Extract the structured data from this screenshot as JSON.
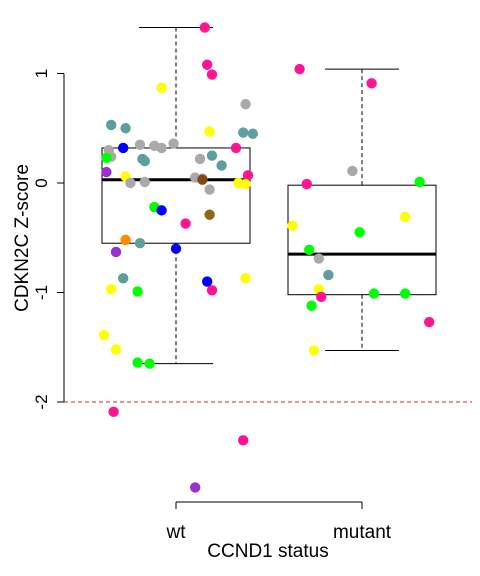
{
  "chart_data": {
    "type": "boxplot",
    "ylabel": "CDKN2C Z-score",
    "xlabel": "CCND1 status",
    "categories": [
      "wt",
      "mutant"
    ],
    "ylim": [
      -2.9,
      1.45
    ],
    "yticks": [
      1,
      0,
      -1,
      -2
    ],
    "yticklabels": [
      "1",
      "0",
      "-1",
      "-2"
    ],
    "reference_line": {
      "y": -2,
      "color": "#d62728",
      "style": "dashed"
    },
    "boxes": [
      {
        "category": "wt",
        "whisker_low": -1.65,
        "q1": -0.55,
        "median": 0.03,
        "q3": 0.32,
        "whisker_high": 1.42
      },
      {
        "category": "mutant",
        "whisker_low": -1.53,
        "q1": -1.02,
        "median": -0.65,
        "q3": -0.02,
        "whisker_high": 1.04
      }
    ],
    "points": [
      {
        "group": "wt",
        "jitter": 0.12,
        "y": 1.42,
        "color": "#ff1493"
      },
      {
        "group": "wt",
        "jitter": 0.13,
        "y": 1.08,
        "color": "#ff1493"
      },
      {
        "group": "wt",
        "jitter": 0.15,
        "y": 0.99,
        "color": "#ff1493"
      },
      {
        "group": "wt",
        "jitter": -0.06,
        "y": 0.87,
        "color": "#ffff00"
      },
      {
        "group": "wt",
        "jitter": 0.29,
        "y": 0.72,
        "color": "#a9a9a9"
      },
      {
        "group": "wt",
        "jitter": -0.27,
        "y": 0.53,
        "color": "#5f9ea0"
      },
      {
        "group": "wt",
        "jitter": -0.21,
        "y": 0.5,
        "color": "#5f9ea0"
      },
      {
        "group": "wt",
        "jitter": 0.14,
        "y": 0.47,
        "color": "#ffff00"
      },
      {
        "group": "wt",
        "jitter": 0.28,
        "y": 0.46,
        "color": "#5f9ea0"
      },
      {
        "group": "wt",
        "jitter": 0.32,
        "y": 0.45,
        "color": "#5f9ea0"
      },
      {
        "group": "wt",
        "jitter": -0.01,
        "y": 0.36,
        "color": "#a9a9a9"
      },
      {
        "group": "wt",
        "jitter": -0.15,
        "y": 0.35,
        "color": "#a9a9a9"
      },
      {
        "group": "wt",
        "jitter": -0.09,
        "y": 0.34,
        "color": "#a9a9a9"
      },
      {
        "group": "wt",
        "jitter": -0.22,
        "y": 0.32,
        "color": "#0000ff"
      },
      {
        "group": "wt",
        "jitter": -0.06,
        "y": 0.32,
        "color": "#a9a9a9"
      },
      {
        "group": "wt",
        "jitter": 0.25,
        "y": 0.32,
        "color": "#ff1493"
      },
      {
        "group": "wt",
        "jitter": -0.28,
        "y": 0.3,
        "color": "#a9a9a9"
      },
      {
        "group": "wt",
        "jitter": -0.27,
        "y": 0.24,
        "color": "#a9a9a9"
      },
      {
        "group": "wt",
        "jitter": 0.15,
        "y": 0.25,
        "color": "#5f9ea0"
      },
      {
        "group": "wt",
        "jitter": -0.29,
        "y": 0.23,
        "color": "#00ff00"
      },
      {
        "group": "wt",
        "jitter": -0.14,
        "y": 0.22,
        "color": "#5f9ea0"
      },
      {
        "group": "wt",
        "jitter": -0.13,
        "y": 0.2,
        "color": "#5f9ea0"
      },
      {
        "group": "wt",
        "jitter": 0.1,
        "y": 0.22,
        "color": "#a9a9a9"
      },
      {
        "group": "wt",
        "jitter": 0.19,
        "y": 0.16,
        "color": "#5f9ea0"
      },
      {
        "group": "wt",
        "jitter": -0.29,
        "y": 0.1,
        "color": "#9932cc"
      },
      {
        "group": "wt",
        "jitter": -0.21,
        "y": 0.06,
        "color": "#ffff00"
      },
      {
        "group": "wt",
        "jitter": 0.3,
        "y": 0.07,
        "color": "#ff1493"
      },
      {
        "group": "wt",
        "jitter": 0.08,
        "y": 0.05,
        "color": "#a9a9a9"
      },
      {
        "group": "wt",
        "jitter": 0.11,
        "y": 0.04,
        "color": "#a9a9a9"
      },
      {
        "group": "wt",
        "jitter": 0.11,
        "y": 0.03,
        "color": "#8b4513"
      },
      {
        "group": "wt",
        "jitter": -0.13,
        "y": 0.01,
        "color": "#a9a9a9"
      },
      {
        "group": "wt",
        "jitter": -0.19,
        "y": 0.0,
        "color": "#a9a9a9"
      },
      {
        "group": "wt",
        "jitter": 0.26,
        "y": 0.0,
        "color": "#ffff00"
      },
      {
        "group": "wt",
        "jitter": 0.29,
        "y": -0.01,
        "color": "#ffff00"
      },
      {
        "group": "wt",
        "jitter": 0.14,
        "y": -0.06,
        "color": "#a9a9a9"
      },
      {
        "group": "wt",
        "jitter": -0.09,
        "y": -0.22,
        "color": "#00ff00"
      },
      {
        "group": "wt",
        "jitter": -0.06,
        "y": -0.25,
        "color": "#0000ff"
      },
      {
        "group": "wt",
        "jitter": 0.14,
        "y": -0.29,
        "color": "#8b6914"
      },
      {
        "group": "wt",
        "jitter": 0.04,
        "y": -0.37,
        "color": "#ff1493"
      },
      {
        "group": "wt",
        "jitter": -0.21,
        "y": -0.52,
        "color": "#ff8c00"
      },
      {
        "group": "wt",
        "jitter": -0.15,
        "y": -0.55,
        "color": "#5f9ea0"
      },
      {
        "group": "wt",
        "jitter": 0.0,
        "y": -0.6,
        "color": "#0000ff"
      },
      {
        "group": "wt",
        "jitter": -0.25,
        "y": -0.63,
        "color": "#9932cc"
      },
      {
        "group": "wt",
        "jitter": -0.22,
        "y": -0.87,
        "color": "#5f9ea0"
      },
      {
        "group": "wt",
        "jitter": 0.29,
        "y": -0.87,
        "color": "#ffff00"
      },
      {
        "group": "wt",
        "jitter": 0.13,
        "y": -0.9,
        "color": "#0000ff"
      },
      {
        "group": "wt",
        "jitter": -0.27,
        "y": -0.97,
        "color": "#ffff00"
      },
      {
        "group": "wt",
        "jitter": 0.15,
        "y": -0.98,
        "color": "#ff1493"
      },
      {
        "group": "wt",
        "jitter": -0.16,
        "y": -0.99,
        "color": "#00ff00"
      },
      {
        "group": "wt",
        "jitter": -0.3,
        "y": -1.39,
        "color": "#ffff00"
      },
      {
        "group": "wt",
        "jitter": -0.25,
        "y": -1.52,
        "color": "#ffff00"
      },
      {
        "group": "wt",
        "jitter": -0.16,
        "y": -1.64,
        "color": "#00ff00"
      },
      {
        "group": "wt",
        "jitter": -0.11,
        "y": -1.65,
        "color": "#00ff00"
      },
      {
        "group": "wt",
        "jitter": -0.26,
        "y": -2.09,
        "color": "#ff1493"
      },
      {
        "group": "wt",
        "jitter": 0.28,
        "y": -2.35,
        "color": "#ff1493"
      },
      {
        "group": "wt",
        "jitter": 0.08,
        "y": -2.78,
        "color": "#9932cc"
      },
      {
        "group": "mutant",
        "jitter": -0.26,
        "y": 1.04,
        "color": "#ff1493"
      },
      {
        "group": "mutant",
        "jitter": 0.04,
        "y": 0.91,
        "color": "#ff1493"
      },
      {
        "group": "mutant",
        "jitter": -0.04,
        "y": 0.11,
        "color": "#a9a9a9"
      },
      {
        "group": "mutant",
        "jitter": -0.23,
        "y": -0.01,
        "color": "#ff1493"
      },
      {
        "group": "mutant",
        "jitter": 0.24,
        "y": 0.01,
        "color": "#00ff00"
      },
      {
        "group": "mutant",
        "jitter": 0.18,
        "y": -0.31,
        "color": "#ffff00"
      },
      {
        "group": "mutant",
        "jitter": -0.29,
        "y": -0.39,
        "color": "#ffff00"
      },
      {
        "group": "mutant",
        "jitter": -0.01,
        "y": -0.45,
        "color": "#00ff00"
      },
      {
        "group": "mutant",
        "jitter": -0.22,
        "y": -0.61,
        "color": "#00ff00"
      },
      {
        "group": "mutant",
        "jitter": -0.18,
        "y": -0.69,
        "color": "#a9a9a9"
      },
      {
        "group": "mutant",
        "jitter": -0.14,
        "y": -0.84,
        "color": "#5f9ea0"
      },
      {
        "group": "mutant",
        "jitter": -0.18,
        "y": -0.97,
        "color": "#ffff00"
      },
      {
        "group": "mutant",
        "jitter": 0.05,
        "y": -1.01,
        "color": "#00ff00"
      },
      {
        "group": "mutant",
        "jitter": 0.18,
        "y": -1.01,
        "color": "#00ff00"
      },
      {
        "group": "mutant",
        "jitter": -0.17,
        "y": -1.04,
        "color": "#ff1493"
      },
      {
        "group": "mutant",
        "jitter": -0.21,
        "y": -1.12,
        "color": "#00ff00"
      },
      {
        "group": "mutant",
        "jitter": 0.28,
        "y": -1.27,
        "color": "#ff1493"
      },
      {
        "group": "mutant",
        "jitter": -0.2,
        "y": -1.53,
        "color": "#ffff00"
      }
    ]
  }
}
